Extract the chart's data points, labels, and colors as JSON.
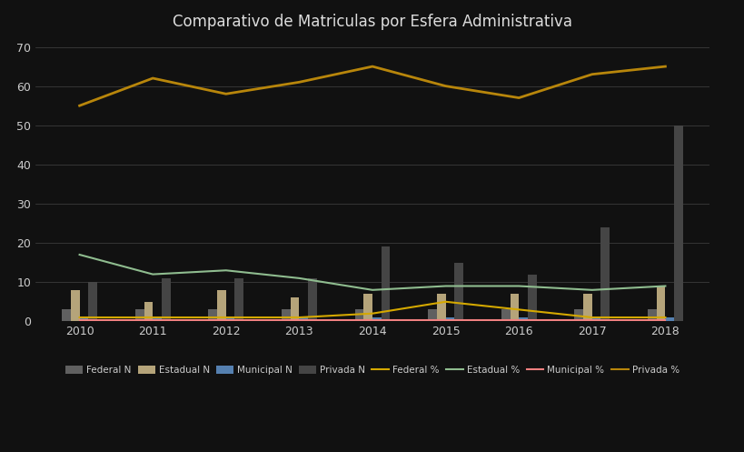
{
  "title": "Comparativo de Matriculas por Esfera Administrativa",
  "years": [
    2010,
    2011,
    2012,
    2013,
    2014,
    2015,
    2016,
    2017,
    2018
  ],
  "federal_N": [
    3,
    3,
    3,
    3,
    3,
    3,
    3,
    3,
    3
  ],
  "estadual_N": [
    8,
    5,
    8,
    6,
    7,
    7,
    7,
    7,
    9
  ],
  "municipal_N": [
    1,
    1,
    1,
    1,
    1,
    1,
    1,
    1,
    1
  ],
  "privada_N": [
    10,
    11,
    11,
    11,
    19,
    15,
    12,
    24,
    50
  ],
  "federal_pct": [
    1,
    1,
    1,
    1,
    2,
    5,
    3,
    1,
    1
  ],
  "estadual_pct": [
    17,
    12,
    13,
    11,
    8,
    9,
    9,
    8,
    9
  ],
  "municipal_pct": [
    0.3,
    0.3,
    0.3,
    0.3,
    0.3,
    0.3,
    0.3,
    0.3,
    0.3
  ],
  "privada_pct": [
    55,
    62,
    58,
    61,
    65,
    60,
    57,
    63,
    65
  ],
  "bar_width": 0.12,
  "color_federal_N": "#606060",
  "color_estadual_N": "#b5a47a",
  "color_municipal_N": "#5580b0",
  "color_privada_N": "#454545",
  "color_federal_pct": "#d4a800",
  "color_estadual_pct": "#8fbc8f",
  "color_municipal_pct": "#f08080",
  "color_privada_pct": "#b8860b",
  "bg_color": "#111111",
  "grid_color": "#444444",
  "text_color": "#cccccc",
  "title_color": "#dddddd",
  "yticks": [
    0,
    10,
    20,
    30,
    40,
    50,
    60,
    70
  ],
  "ylim": [
    0,
    72
  ]
}
